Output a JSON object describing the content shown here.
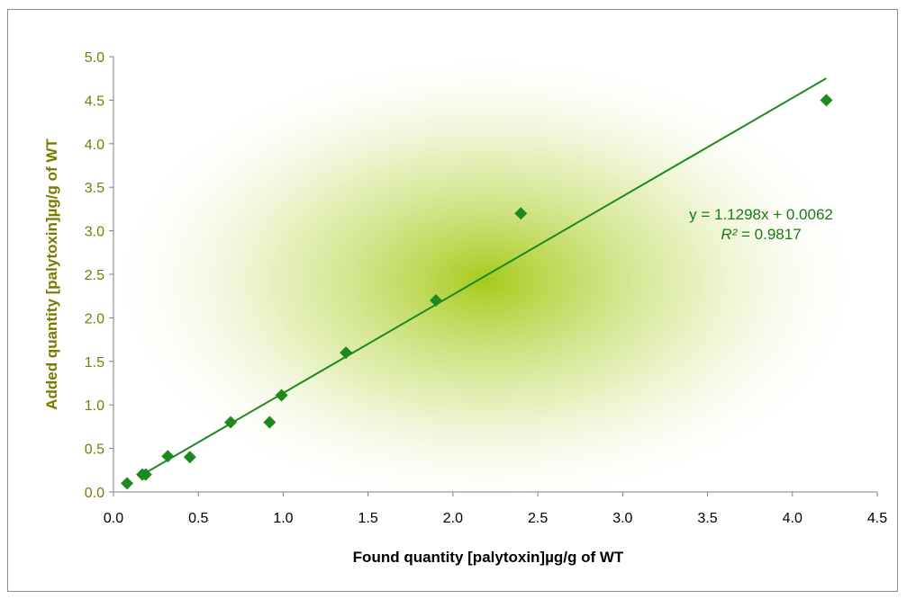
{
  "chart_data": {
    "type": "scatter",
    "xlabel": "Found quantity [palytoxin]µg/g of WT",
    "ylabel": "Added quantity [palytoxin]µg/g of WT",
    "xlim": [
      0,
      4.5
    ],
    "ylim": [
      0,
      5
    ],
    "x_ticks": [
      "0.0",
      "0.5",
      "1.0",
      "1.5",
      "2.0",
      "2.5",
      "3.0",
      "3.5",
      "4.0",
      "4.5"
    ],
    "y_ticks": [
      "0.0",
      "0.5",
      "1.0",
      "1.5",
      "2.0",
      "2.5",
      "3.0",
      "3.5",
      "4.0",
      "4.5",
      "5.0"
    ],
    "grid": false,
    "points": [
      {
        "x": 0.08,
        "y": 0.1
      },
      {
        "x": 0.17,
        "y": 0.2
      },
      {
        "x": 0.19,
        "y": 0.2
      },
      {
        "x": 0.32,
        "y": 0.41
      },
      {
        "x": 0.45,
        "y": 0.4
      },
      {
        "x": 0.69,
        "y": 0.8
      },
      {
        "x": 0.92,
        "y": 0.8
      },
      {
        "x": 0.99,
        "y": 1.11
      },
      {
        "x": 1.37,
        "y": 1.6
      },
      {
        "x": 1.9,
        "y": 2.2
      },
      {
        "x": 2.4,
        "y": 3.2
      },
      {
        "x": 4.2,
        "y": 4.5
      }
    ],
    "trendline": {
      "slope": 1.1298,
      "intercept": 0.0062,
      "x_from": 0.15,
      "x_to": 4.2
    },
    "equation_label": "y = 1.1298x + 0.0062",
    "r2_label_prefix": "R²",
    "r2_label_value": " = 0.9817",
    "colors": {
      "marker": "#1e8a1e",
      "trendline": "#1e8a1e",
      "y_axis_text": "#7a7a00",
      "x_axis_text": "#000000",
      "glow": "#9cc400"
    }
  }
}
